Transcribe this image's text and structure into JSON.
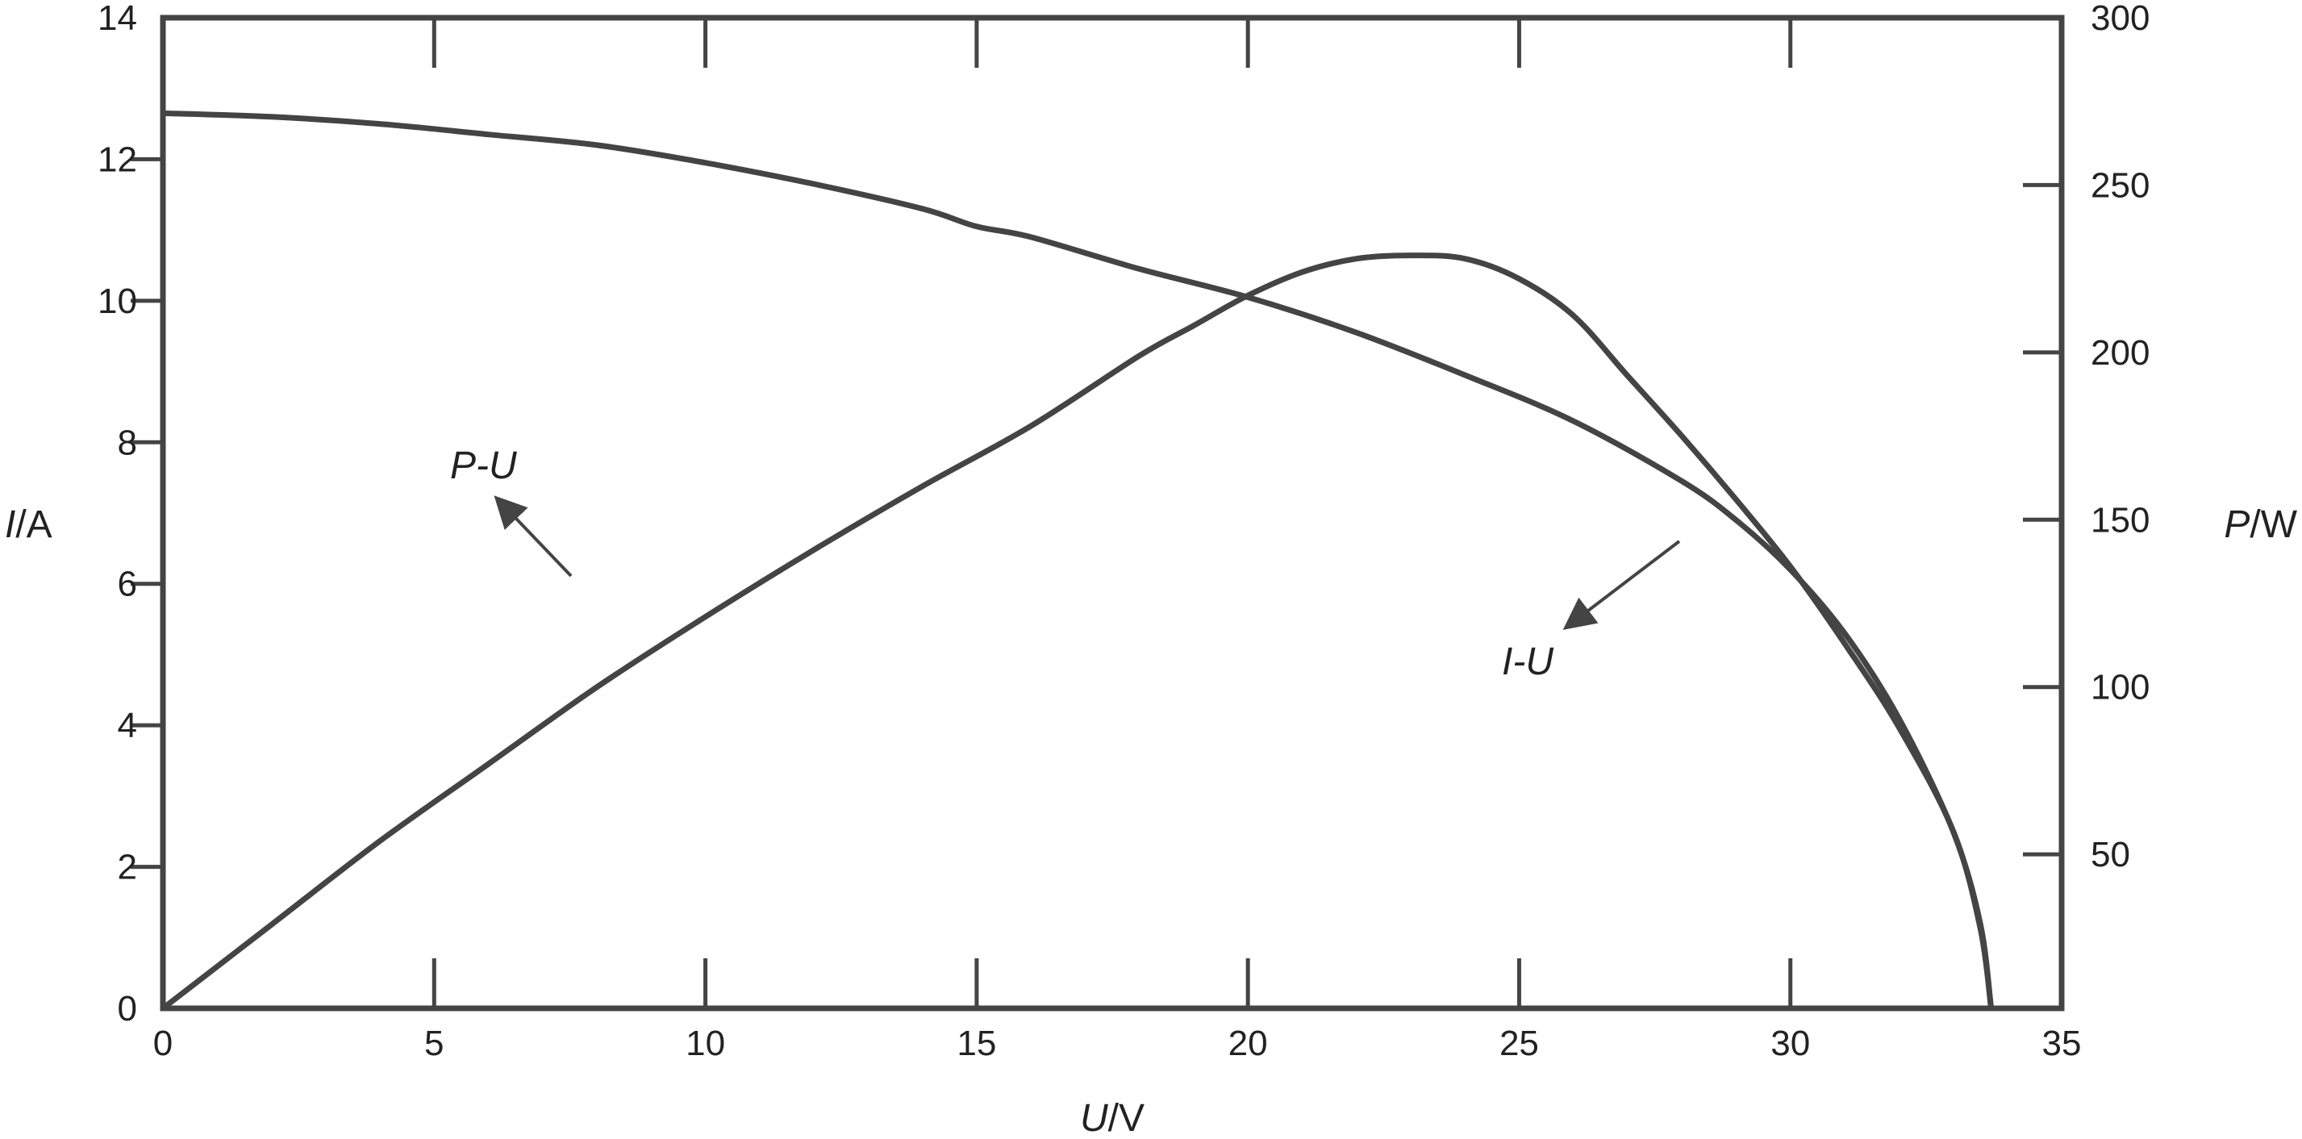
{
  "chart_data": {
    "type": "line",
    "title": "",
    "x_axis": {
      "label_italic": "U",
      "label_rest": "/V",
      "range": [
        0,
        35
      ],
      "ticks": [
        0,
        5,
        10,
        15,
        20,
        25,
        30,
        35
      ]
    },
    "y_left": {
      "label_italic": "I",
      "label_rest": "/A",
      "range": [
        0,
        14
      ],
      "ticks": [
        0,
        2,
        4,
        6,
        8,
        10,
        12,
        14
      ]
    },
    "y_right": {
      "label_italic": "P",
      "label_rest": "/W",
      "range": [
        4,
        300
      ],
      "ticks": [
        50,
        100,
        150,
        200,
        250,
        300
      ]
    },
    "grid": false,
    "legend": "none",
    "color": "#444444",
    "series": [
      {
        "name": "I-U",
        "axis": "left",
        "x": [
          0,
          2,
          4,
          6,
          8,
          10,
          12,
          14,
          15,
          16,
          18,
          20,
          22,
          24,
          26,
          28,
          29,
          30,
          31,
          32,
          33,
          33.5,
          33.7
        ],
        "y": [
          12.65,
          12.6,
          12.5,
          12.35,
          12.2,
          11.95,
          11.65,
          11.3,
          11.05,
          10.9,
          10.45,
          10.05,
          9.55,
          8.95,
          8.3,
          7.45,
          6.9,
          6.2,
          5.3,
          4.1,
          2.5,
          1.2,
          0
        ]
      },
      {
        "name": "P-U",
        "axis": "right",
        "x": [
          0,
          2,
          4,
          6,
          8,
          10,
          12,
          14,
          16,
          18,
          19,
          20,
          21,
          22,
          23,
          24,
          25,
          26,
          27,
          28,
          29,
          30,
          31,
          32,
          33,
          33.5,
          33.7
        ],
        "y": [
          4,
          29,
          54,
          77,
          100,
          121,
          141,
          160,
          178,
          199,
          208,
          217,
          224,
          228,
          229,
          228,
          222,
          211,
          193,
          175,
          156,
          136,
          113,
          88,
          57,
          28,
          4
        ]
      }
    ],
    "annotations": [
      {
        "text_italic_a": "P",
        "text_mid": "-",
        "text_italic_b": "U",
        "points_to": "P-U"
      },
      {
        "text_italic_a": "I",
        "text_mid": "-",
        "text_italic_b": "U",
        "points_to": "I-U"
      }
    ]
  }
}
